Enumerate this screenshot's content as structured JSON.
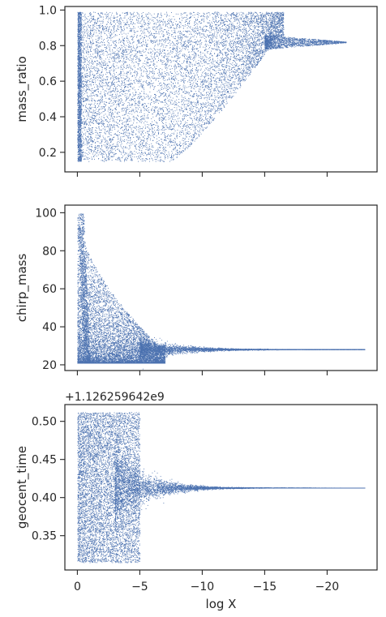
{
  "chart_data": [
    {
      "type": "scatter",
      "ylabel": "mass_ratio",
      "xlabel": "",
      "xlim": [
        1,
        -24
      ],
      "ylim": [
        0.09,
        1.02
      ],
      "xticks": [
        0,
        -5,
        -10,
        -15,
        -20
      ],
      "xtick_labels_visible": false,
      "yticks": [
        0.2,
        0.4,
        0.6,
        0.8,
        1.0
      ],
      "ytick_labels": [
        "0.2",
        "0.4",
        "0.6",
        "0.8",
        "1.0"
      ],
      "color": "#4c72b0",
      "offset_text": "",
      "grid": false,
      "samples": {
        "description": "dense nested-sampling posterior cloud",
        "points": [
          [
            0.0,
            0.98
          ],
          [
            0.0,
            0.2
          ],
          [
            -0.5,
            0.15
          ],
          [
            -1.0,
            0.3
          ],
          [
            -1.5,
            0.55
          ],
          [
            -2.0,
            0.15
          ],
          [
            -2.5,
            0.4
          ],
          [
            -3.0,
            0.15
          ],
          [
            -3.5,
            0.7
          ],
          [
            -4.0,
            0.95
          ],
          [
            -5.0,
            0.16
          ],
          [
            -6.0,
            0.2
          ],
          [
            -7.0,
            0.15
          ],
          [
            -8.0,
            0.25
          ],
          [
            -9.0,
            0.4
          ],
          [
            -10.0,
            0.55
          ],
          [
            -11.0,
            0.65
          ],
          [
            -12.0,
            0.72
          ],
          [
            -13.0,
            0.78
          ],
          [
            -14.0,
            0.85
          ],
          [
            -15.0,
            0.9
          ],
          [
            -16.0,
            0.93
          ],
          [
            -17.0,
            0.88
          ],
          [
            -18.0,
            0.85
          ],
          [
            -19.0,
            0.83
          ],
          [
            -20.0,
            0.82
          ]
        ]
      }
    },
    {
      "type": "scatter",
      "ylabel": "chirp_mass",
      "xlabel": "",
      "xlim": [
        1,
        -24
      ],
      "ylim": [
        17,
        104
      ],
      "xticks": [
        0,
        -5,
        -10,
        -15,
        -20
      ],
      "xtick_labels_visible": false,
      "yticks": [
        20,
        40,
        60,
        80,
        100
      ],
      "ytick_labels": [
        "20",
        "40",
        "60",
        "80",
        "100"
      ],
      "color": "#4c72b0",
      "offset_text": "",
      "grid": false,
      "samples": {
        "description": "dense nested-sampling posterior cloud converging to ~28",
        "points": [
          [
            0.0,
            100
          ],
          [
            0.0,
            75
          ],
          [
            -0.5,
            55
          ],
          [
            -1.0,
            38
          ],
          [
            -1.5,
            30
          ],
          [
            -2.0,
            23
          ],
          [
            -2.5,
            21
          ],
          [
            -3.0,
            22
          ],
          [
            -4.0,
            24
          ],
          [
            -5.0,
            28
          ],
          [
            -6.0,
            30
          ],
          [
            -7.0,
            31
          ],
          [
            -8.0,
            30
          ],
          [
            -9.0,
            29
          ],
          [
            -10.0,
            28.5
          ],
          [
            -12.0,
            28.3
          ],
          [
            -15.0,
            28.2
          ],
          [
            -18.0,
            28.1
          ],
          [
            -20.0,
            28.1
          ],
          [
            -23.0,
            28.0
          ]
        ]
      }
    },
    {
      "type": "scatter",
      "ylabel": "geocent_time",
      "xlabel": "log X",
      "xlim": [
        1,
        -24
      ],
      "ylim": [
        0.305,
        0.522
      ],
      "xticks": [
        0,
        -5,
        -10,
        -15,
        -20
      ],
      "xtick_labels_visible": true,
      "xtick_labels": [
        "0",
        "−5",
        "−10",
        "−15",
        "−20"
      ],
      "yticks": [
        0.35,
        0.4,
        0.45,
        0.5
      ],
      "ytick_labels": [
        "0.35",
        "0.40",
        "0.45",
        "0.50"
      ],
      "color": "#4c72b0",
      "offset_text": "+1.126259642e9",
      "grid": false,
      "samples": {
        "description": "dense nested-sampling posterior cloud converging to ~0.413",
        "points": [
          [
            0.0,
            0.51
          ],
          [
            0.0,
            0.32
          ],
          [
            -1.0,
            0.45
          ],
          [
            -2.0,
            0.33
          ],
          [
            -3.0,
            0.5
          ],
          [
            -4.0,
            0.38
          ],
          [
            -5.0,
            0.42
          ],
          [
            -6.0,
            0.41
          ],
          [
            -8.0,
            0.414
          ],
          [
            -10.0,
            0.413
          ],
          [
            -15.0,
            0.413
          ],
          [
            -20.0,
            0.413
          ],
          [
            -23.0,
            0.413
          ]
        ]
      }
    }
  ]
}
